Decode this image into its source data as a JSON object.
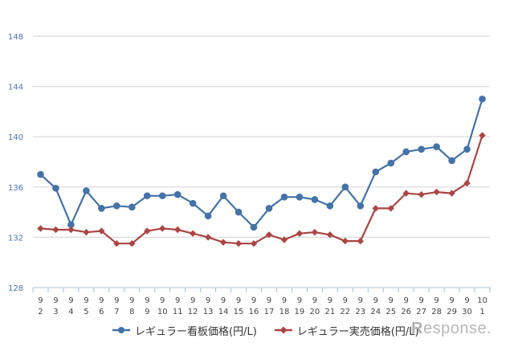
{
  "chart_data": {
    "type": "line",
    "title": "",
    "xlabel": "",
    "ylabel": "",
    "ylim": [
      128,
      148
    ],
    "yticks": [
      128,
      132,
      136,
      140,
      144,
      148
    ],
    "grid": true,
    "legend_position": "bottom",
    "categories": [
      "9/2",
      "9/3",
      "9/4",
      "9/5",
      "9/6",
      "9/7",
      "9/8",
      "9/9",
      "9/10",
      "9/11",
      "9/12",
      "9/13",
      "9/14",
      "9/15",
      "9/16",
      "9/17",
      "9/18",
      "9/19",
      "9/20",
      "9/21",
      "9/22",
      "9/23",
      "9/24",
      "9/25",
      "9/26",
      "9/27",
      "9/28",
      "9/29",
      "9/30",
      "10/1"
    ],
    "category_labels": [
      [
        "9",
        "2"
      ],
      [
        "9",
        "3"
      ],
      [
        "9",
        "4"
      ],
      [
        "9",
        "5"
      ],
      [
        "9",
        "6"
      ],
      [
        "9",
        "7"
      ],
      [
        "9",
        "8"
      ],
      [
        "9",
        "9"
      ],
      [
        "9",
        "10"
      ],
      [
        "9",
        "11"
      ],
      [
        "9",
        "12"
      ],
      [
        "9",
        "13"
      ],
      [
        "9",
        "14"
      ],
      [
        "9",
        "15"
      ],
      [
        "9",
        "16"
      ],
      [
        "9",
        "17"
      ],
      [
        "9",
        "18"
      ],
      [
        "9",
        "19"
      ],
      [
        "9",
        "20"
      ],
      [
        "9",
        "21"
      ],
      [
        "9",
        "22"
      ],
      [
        "9",
        "23"
      ],
      [
        "9",
        "24"
      ],
      [
        "9",
        "25"
      ],
      [
        "9",
        "26"
      ],
      [
        "9",
        "27"
      ],
      [
        "9",
        "28"
      ],
      [
        "9",
        "29"
      ],
      [
        "9",
        "30"
      ],
      [
        "10",
        "1"
      ]
    ],
    "series": [
      {
        "name": "レギュラー看板価格(円/L)",
        "color": "#4572A7",
        "marker": "circle",
        "values": [
          137.0,
          135.9,
          133.0,
          135.7,
          134.3,
          134.5,
          134.4,
          135.3,
          135.3,
          135.4,
          134.7,
          133.7,
          135.3,
          134.0,
          132.8,
          134.3,
          135.2,
          135.2,
          135.0,
          134.5,
          136.0,
          134.5,
          137.2,
          137.9,
          138.8,
          139.0,
          139.2,
          138.1,
          139.0,
          143.0
        ]
      },
      {
        "name": "レギュラー実売価格(円/L)",
        "color": "#AA4643",
        "marker": "diamond",
        "values": [
          132.7,
          132.6,
          132.6,
          132.4,
          132.5,
          131.5,
          131.5,
          132.5,
          132.7,
          132.6,
          132.3,
          132.0,
          131.6,
          131.5,
          131.5,
          132.2,
          131.8,
          132.3,
          132.4,
          132.2,
          131.7,
          131.7,
          134.3,
          134.3,
          135.5,
          135.4,
          135.6,
          135.5,
          136.3,
          140.1
        ]
      }
    ],
    "annotations": []
  },
  "legend": {
    "items": [
      {
        "label": "レギュラー看板価格(円/L)",
        "color": "#4572A7"
      },
      {
        "label": "レギュラー実売価格(円/L)",
        "color": "#AA4643"
      }
    ]
  },
  "watermark": {
    "text": "esponse.",
    "prefix": "R"
  },
  "style": {
    "gridline_color": "#d9d9d9",
    "axis_color": "#a7bfd9",
    "ytick_label_color": "#4a74ad",
    "xtick_label_color": "#444444"
  }
}
